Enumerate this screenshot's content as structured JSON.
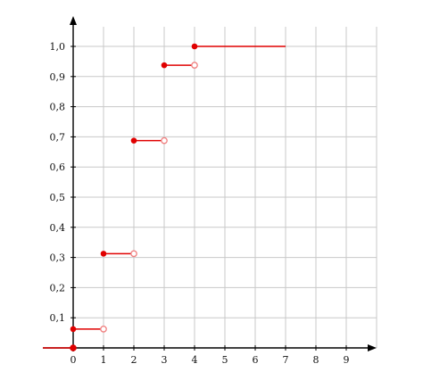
{
  "chart_data": {
    "type": "line",
    "subtype": "step",
    "title": "",
    "xlabel": "",
    "ylabel": "",
    "xlim": [
      -1,
      10
    ],
    "ylim": [
      0,
      1.1
    ],
    "xticks": [
      0,
      1,
      2,
      3,
      4,
      5,
      6,
      7,
      8,
      9
    ],
    "xtick_labels": [
      "0",
      "1",
      "2",
      "3",
      "4",
      "5",
      "6",
      "7",
      "8",
      "9"
    ],
    "yticks": [
      0.1,
      0.2,
      0.3,
      0.4,
      0.5,
      0.6,
      0.7,
      0.8,
      0.9,
      1.0
    ],
    "ytick_labels": [
      "0,1",
      "0,2",
      "0,3",
      "0,4",
      "0,5",
      "0,6",
      "0,7",
      "0,8",
      "0,9",
      "1,0"
    ],
    "grid": true,
    "grid_xrange": [
      0,
      10
    ],
    "segments": [
      {
        "x_start": -1,
        "x_end": 0,
        "y": 0,
        "closed_start": false,
        "open_end": false
      },
      {
        "x_start": 0,
        "x_end": 1,
        "y": 0.0625,
        "closed_start": true,
        "open_end": true
      },
      {
        "x_start": 1,
        "x_end": 2,
        "y": 0.3125,
        "closed_start": true,
        "open_end": true
      },
      {
        "x_start": 2,
        "x_end": 3,
        "y": 0.6875,
        "closed_start": true,
        "open_end": true
      },
      {
        "x_start": 3,
        "x_end": 4,
        "y": 0.9375,
        "closed_start": true,
        "open_end": true
      },
      {
        "x_start": 4,
        "x_end": 7,
        "y": 1.0,
        "closed_start": true,
        "open_end": false
      }
    ],
    "extra_points": [
      {
        "x": 0,
        "y": 0,
        "filled": true
      }
    ],
    "colors": {
      "line": "#e00000",
      "open_marker": "#f08080",
      "axis": "#000000",
      "grid": "#c8c8c8"
    }
  }
}
